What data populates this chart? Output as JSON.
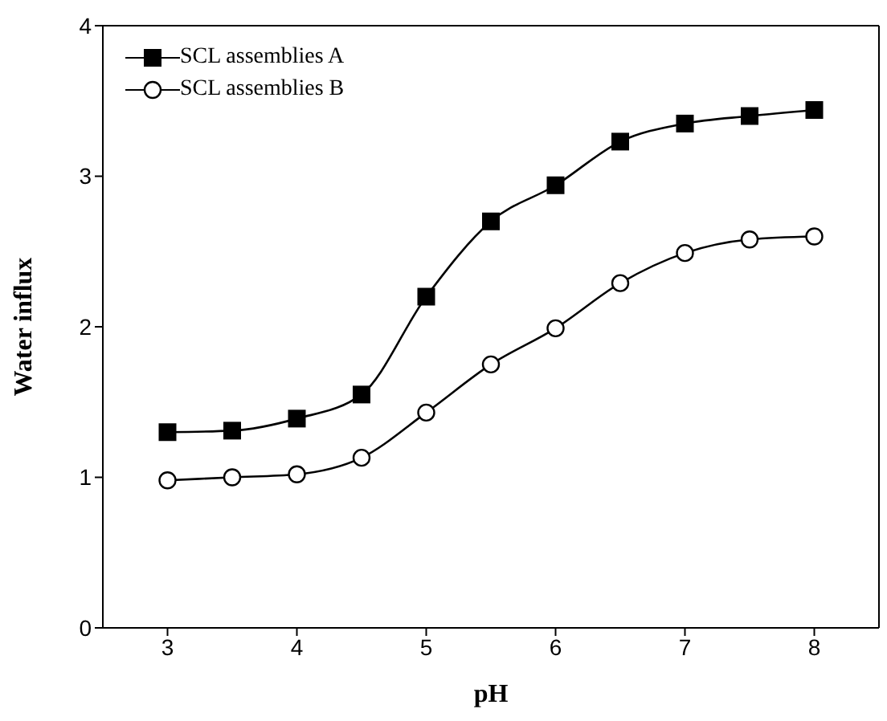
{
  "chart_data": {
    "type": "line",
    "xlabel": "pH",
    "ylabel": "Water influx",
    "x": [
      3,
      3.5,
      4,
      4.5,
      5,
      5.5,
      6,
      6.5,
      7,
      7.5,
      8
    ],
    "series": [
      {
        "name": "SCL assemblies A",
        "color": "#000000",
        "marker": "square",
        "values": [
          1.3,
          1.31,
          1.39,
          1.55,
          2.2,
          2.7,
          2.94,
          3.23,
          3.35,
          3.4,
          3.44
        ]
      },
      {
        "name": "SCL assemblies B",
        "color": "#000000",
        "marker": "circle",
        "values": [
          0.98,
          1.0,
          1.02,
          1.13,
          1.43,
          1.75,
          1.99,
          2.29,
          2.49,
          2.58,
          2.6
        ]
      }
    ],
    "xlim": [
      2.5,
      8.5
    ],
    "xticks": [
      3,
      4,
      5,
      6,
      7,
      8
    ],
    "ylim": [
      0,
      4
    ],
    "yticks": [
      0,
      1,
      2,
      3,
      4
    ],
    "grid": false,
    "legend": "top left",
    "line_style": "solid"
  }
}
